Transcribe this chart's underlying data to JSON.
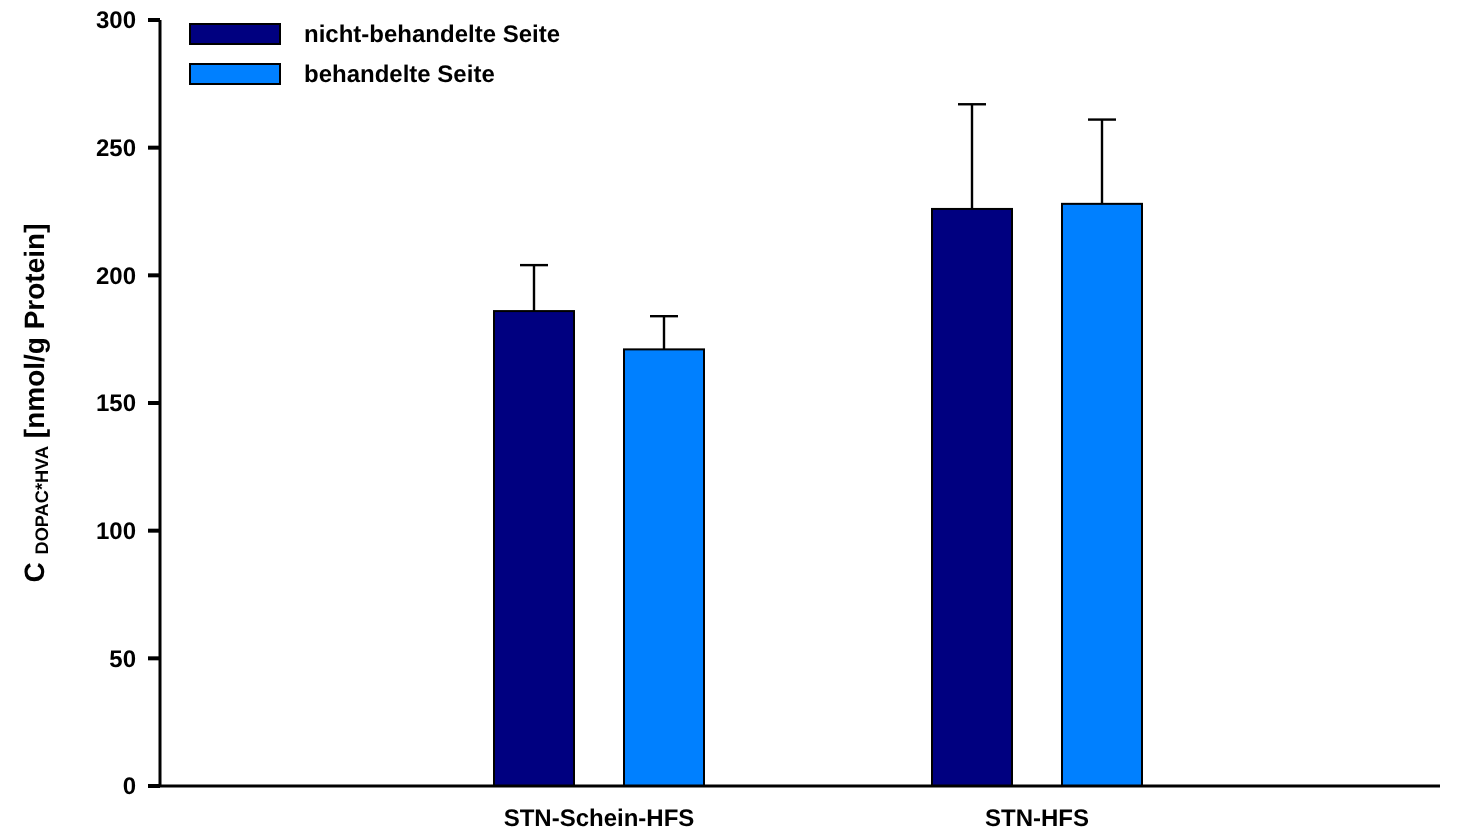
{
  "chart_data": {
    "type": "bar",
    "ylabel": "C $_{DOPAC*HVA}$ [nmol/g Protein]",
    "categories": [
      "STN-Schein-HFS",
      "STN-HFS"
    ],
    "series": [
      {
        "name": "nicht-behandelte Seite",
        "color": "#000080",
        "values": [
          186,
          226
        ],
        "errors": [
          [
            186,
            204
          ],
          [
            226,
            267
          ]
        ]
      },
      {
        "name": "behandelte Seite",
        "color": "#0080ff",
        "values": [
          171,
          228
        ],
        "errors": [
          [
            171,
            184
          ],
          [
            228,
            261
          ]
        ]
      }
    ],
    "ylim": [
      0,
      300
    ],
    "yticks": [
      0,
      50,
      100,
      150,
      200,
      250,
      300
    ],
    "grid": false,
    "legend": "top left"
  }
}
